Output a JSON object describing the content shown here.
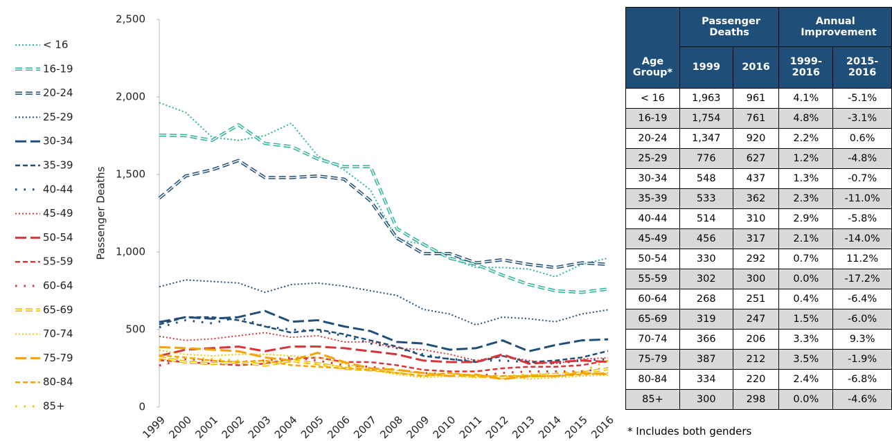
{
  "chart_data": {
    "type": "line",
    "y_label": "Passenger Deaths",
    "categories": [
      "1999",
      "2000",
      "2001",
      "2002",
      "2003",
      "2004",
      "2005",
      "2006",
      "2007",
      "2008",
      "2009",
      "2010",
      "2011",
      "2012",
      "2013",
      "2014",
      "2015",
      "2016"
    ],
    "ylim": [
      0,
      2500
    ],
    "yticks": [
      0,
      500,
      {
        "value": 1000,
        "label": "1,000"
      },
      {
        "value": 1500,
        "label": "1,500"
      },
      {
        "value": 2000,
        "label": "2,000"
      },
      {
        "value": 2500,
        "label": "2,500"
      }
    ],
    "grid": false,
    "legend": "left",
    "series": [
      {
        "name": "< 16",
        "color": "#2bb59a",
        "style": "dotted",
        "values": [
          1963,
          1900,
          1740,
          1720,
          1750,
          1830,
          1620,
          1530,
          1400,
          1080,
          1050,
          960,
          900,
          900,
          890,
          840,
          920,
          961
        ]
      },
      {
        "name": "16-19",
        "color": "#2bb59a",
        "style": "double-dash",
        "values": [
          1754,
          1750,
          1720,
          1820,
          1700,
          1680,
          1600,
          1550,
          1550,
          1150,
          1050,
          960,
          920,
          850,
          790,
          750,
          740,
          761
        ]
      },
      {
        "name": "20-24",
        "color": "#1f4e79",
        "style": "double-dash",
        "values": [
          1347,
          1490,
          1530,
          1590,
          1480,
          1480,
          1490,
          1470,
          1330,
          1090,
          990,
          990,
          930,
          950,
          920,
          900,
          930,
          920
        ]
      },
      {
        "name": "25-29",
        "color": "#1f4e79",
        "style": "dotted",
        "values": [
          776,
          820,
          810,
          800,
          740,
          790,
          800,
          780,
          750,
          720,
          630,
          600,
          530,
          580,
          570,
          550,
          600,
          627
        ]
      },
      {
        "name": "30-34",
        "color": "#1f4e79",
        "style": "long-dash",
        "values": [
          548,
          580,
          570,
          580,
          620,
          550,
          560,
          520,
          490,
          420,
          410,
          370,
          380,
          430,
          360,
          400,
          430,
          437
        ]
      },
      {
        "name": "35-39",
        "color": "#1f4e79",
        "style": "dash",
        "values": [
          533,
          580,
          580,
          560,
          520,
          480,
          500,
          470,
          430,
          390,
          330,
          310,
          290,
          330,
          290,
          300,
          320,
          362
        ]
      },
      {
        "name": "40-44",
        "color": "#1f4e79",
        "style": "sparse-dot",
        "values": [
          514,
          560,
          540,
          580,
          520,
          500,
          490,
          460,
          410,
          380,
          340,
          310,
          300,
          300,
          290,
          280,
          300,
          310
        ]
      },
      {
        "name": "45-49",
        "color": "#d9343a",
        "style": "dotted",
        "values": [
          456,
          430,
          440,
          460,
          480,
          450,
          460,
          420,
          420,
          380,
          370,
          340,
          300,
          330,
          300,
          280,
          310,
          317
        ]
      },
      {
        "name": "50-54",
        "color": "#d9343a",
        "style": "long-dash",
        "values": [
          330,
          370,
          380,
          390,
          360,
          390,
          390,
          380,
          360,
          340,
          300,
          290,
          290,
          340,
          280,
          290,
          300,
          292
        ]
      },
      {
        "name": "55-59",
        "color": "#d9343a",
        "style": "dash",
        "values": [
          302,
          290,
          280,
          270,
          280,
          310,
          320,
          290,
          290,
          270,
          240,
          230,
          230,
          250,
          260,
          260,
          270,
          300
        ]
      },
      {
        "name": "60-64",
        "color": "#d9343a",
        "style": "sparse-dot",
        "values": [
          268,
          310,
          300,
          290,
          300,
          320,
          300,
          270,
          260,
          240,
          220,
          210,
          200,
          220,
          230,
          230,
          230,
          251
        ]
      },
      {
        "name": "65-69",
        "color": "#f5b800",
        "style": "double-dash",
        "values": [
          319,
          290,
          280,
          290,
          270,
          300,
          280,
          250,
          240,
          230,
          210,
          210,
          200,
          190,
          200,
          210,
          220,
          247
        ]
      },
      {
        "name": "70-74",
        "color": "#f5c400",
        "style": "dotted",
        "values": [
          366,
          340,
          330,
          340,
          340,
          330,
          320,
          280,
          240,
          210,
          190,
          200,
          190,
          200,
          180,
          190,
          200,
          206
        ]
      },
      {
        "name": "75-79",
        "color": "#f5a300",
        "style": "long-dash",
        "values": [
          387,
          380,
          370,
          360,
          320,
          300,
          350,
          290,
          250,
          240,
          220,
          200,
          210,
          180,
          200,
          200,
          220,
          212
        ]
      },
      {
        "name": "80-84",
        "color": "#f5a300",
        "style": "dash",
        "values": [
          334,
          320,
          300,
          290,
          300,
          270,
          260,
          250,
          240,
          220,
          200,
          220,
          200,
          200,
          200,
          200,
          210,
          220
        ]
      },
      {
        "name": "85+",
        "color": "#f5c400",
        "style": "sparse-dot",
        "values": [
          300,
          320,
          310,
          300,
          290,
          290,
          280,
          260,
          240,
          220,
          210,
          210,
          200,
          200,
          210,
          220,
          230,
          298
        ]
      }
    ]
  },
  "table": {
    "group_headers": [
      "Passenger Deaths",
      "Annual Improvement"
    ],
    "columns": [
      "Age Group*",
      "1999",
      "2016",
      "1999-2016",
      "2015-2016"
    ],
    "rows": [
      [
        "< 16",
        "1,963",
        "961",
        "4.1%",
        "-5.1%"
      ],
      [
        "16-19",
        "1,754",
        "761",
        "4.8%",
        "-3.1%"
      ],
      [
        "20-24",
        "1,347",
        "920",
        "2.2%",
        "0.6%"
      ],
      [
        "25-29",
        "776",
        "627",
        "1.2%",
        "-4.8%"
      ],
      [
        "30-34",
        "548",
        "437",
        "1.3%",
        "-0.7%"
      ],
      [
        "35-39",
        "533",
        "362",
        "2.3%",
        "-11.0%"
      ],
      [
        "40-44",
        "514",
        "310",
        "2.9%",
        "-5.8%"
      ],
      [
        "45-49",
        "456",
        "317",
        "2.1%",
        "-14.0%"
      ],
      [
        "50-54",
        "330",
        "292",
        "0.7%",
        "11.2%"
      ],
      [
        "55-59",
        "302",
        "300",
        "0.0%",
        "-17.2%"
      ],
      [
        "60-64",
        "268",
        "251",
        "0.4%",
        "-6.4%"
      ],
      [
        "65-69",
        "319",
        "247",
        "1.5%",
        "-6.0%"
      ],
      [
        "70-74",
        "366",
        "206",
        "3.3%",
        "9.3%"
      ],
      [
        "75-79",
        "387",
        "212",
        "3.5%",
        "-1.9%"
      ],
      [
        "80-84",
        "334",
        "220",
        "2.4%",
        "-6.8%"
      ],
      [
        "85+",
        "300",
        "298",
        "0.0%",
        "-4.6%"
      ]
    ],
    "footnote": "* Includes both genders"
  }
}
